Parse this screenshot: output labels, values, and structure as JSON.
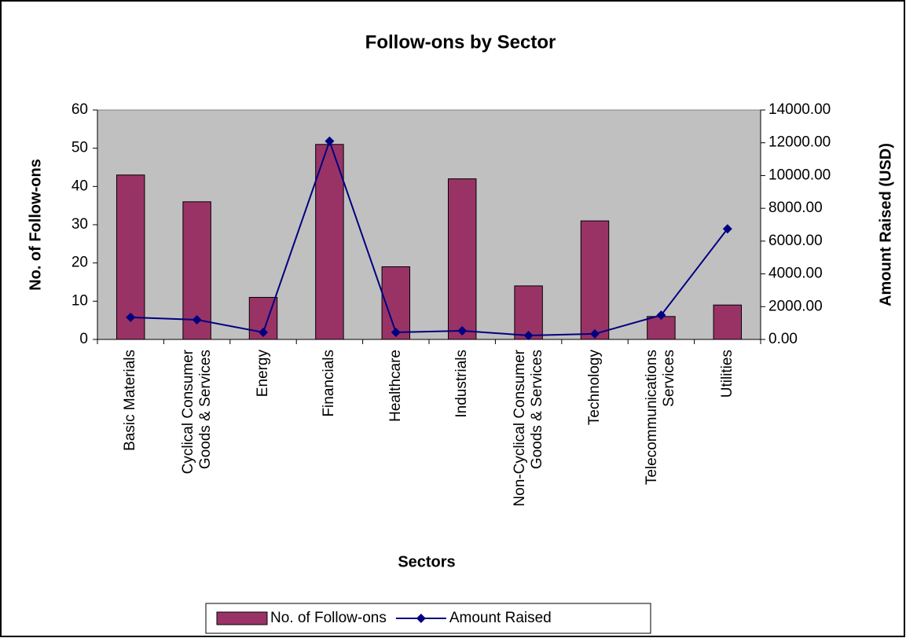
{
  "chart_data": {
    "type": "bar",
    "title": "Follow-ons by Sector",
    "xlabel": "Sectors",
    "ylabel": "No. of Follow-ons",
    "y2label": "Amount Raised (USD)",
    "categories": [
      "Basic Materials",
      "Cyclical Consumer Goods & Services",
      "Energy",
      "Financials",
      "Healthcare",
      "Industrials",
      "Non-Cyclical Consumer Goods & Services",
      "Technology",
      "Telecommunications Services",
      "Utilities"
    ],
    "series": [
      {
        "name": "No. of Follow-ons",
        "type": "bar",
        "color": "#993366",
        "values": [
          43,
          36,
          11,
          51,
          19,
          42,
          14,
          31,
          6,
          9
        ]
      },
      {
        "name": "Amount Raised",
        "type": "line",
        "axis": "y2",
        "color": "#000080",
        "values": [
          1350,
          1200,
          430,
          12100,
          430,
          530,
          240,
          340,
          1480,
          6750
        ]
      }
    ],
    "ylim": [
      0,
      60
    ],
    "yticks": [
      0,
      10,
      20,
      30,
      40,
      50,
      60
    ],
    "y2lim": [
      0,
      14000
    ],
    "y2ticks": [
      {
        "value": 0,
        "label": "0.00"
      },
      {
        "value": 2000,
        "label": "2000.00"
      },
      {
        "value": 4000,
        "label": "4000.00"
      },
      {
        "value": 6000,
        "label": "6000.00"
      },
      {
        "value": 8000,
        "label": "8000.00"
      },
      {
        "value": 10000,
        "label": "10000.00"
      },
      {
        "value": 12000,
        "label": "12000.00"
      },
      {
        "value": 14000,
        "label": "14000.00"
      }
    ],
    "plot_background": "#c0c0c0",
    "legend": "bottom"
  }
}
